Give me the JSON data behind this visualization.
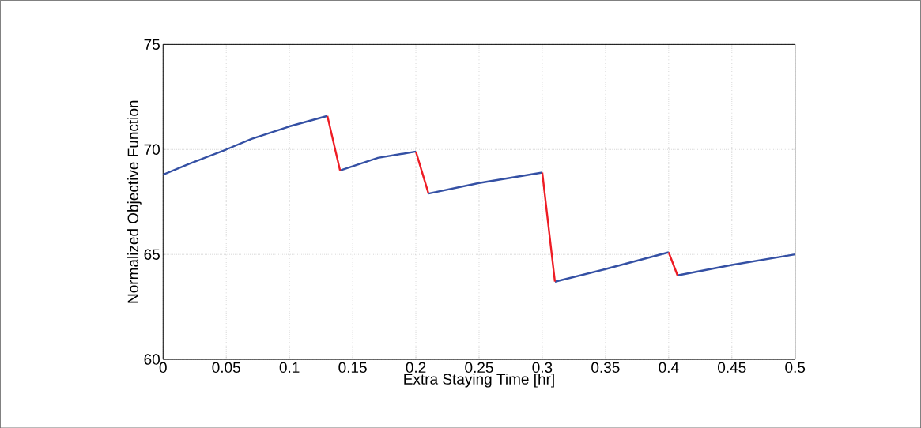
{
  "chart_data": {
    "type": "line",
    "xlabel": "Extra Staying Time [hr]",
    "ylabel": "Normalized Objective Function",
    "xlim": [
      0,
      0.5
    ],
    "ylim": [
      60,
      75
    ],
    "xticks": [
      0,
      0.05,
      0.1,
      0.15,
      0.2,
      0.25,
      0.3,
      0.35,
      0.4,
      0.45,
      0.5
    ],
    "yticks": [
      60,
      65,
      70,
      75
    ],
    "grid": true,
    "line_style": "solid",
    "series": [
      {
        "color": "#3450a4",
        "x": [
          0,
          0.02,
          0.05,
          0.07,
          0.1,
          0.13,
          0.135,
          0.14,
          0.17,
          0.2,
          0.205,
          0.21,
          0.25,
          0.3,
          0.305,
          0.31,
          0.35,
          0.4,
          0.403,
          0.407,
          0.45,
          0.5
        ],
        "values": [
          68.8,
          69.3,
          70.0,
          70.5,
          71.1,
          71.6,
          null,
          69.0,
          69.6,
          69.9,
          null,
          67.9,
          68.4,
          68.9,
          null,
          63.7,
          64.3,
          65.1,
          null,
          64.0,
          64.5,
          65.0
        ]
      },
      {
        "color": "#ee1c24",
        "x": [
          0.13,
          0.14,
          0.17,
          0.2,
          0.21,
          0.25,
          0.3,
          0.31,
          0.35,
          0.4,
          0.407
        ],
        "values": [
          71.6,
          69.0,
          null,
          69.9,
          67.9,
          null,
          68.9,
          63.7,
          null,
          65.1,
          64.0
        ]
      }
    ]
  }
}
